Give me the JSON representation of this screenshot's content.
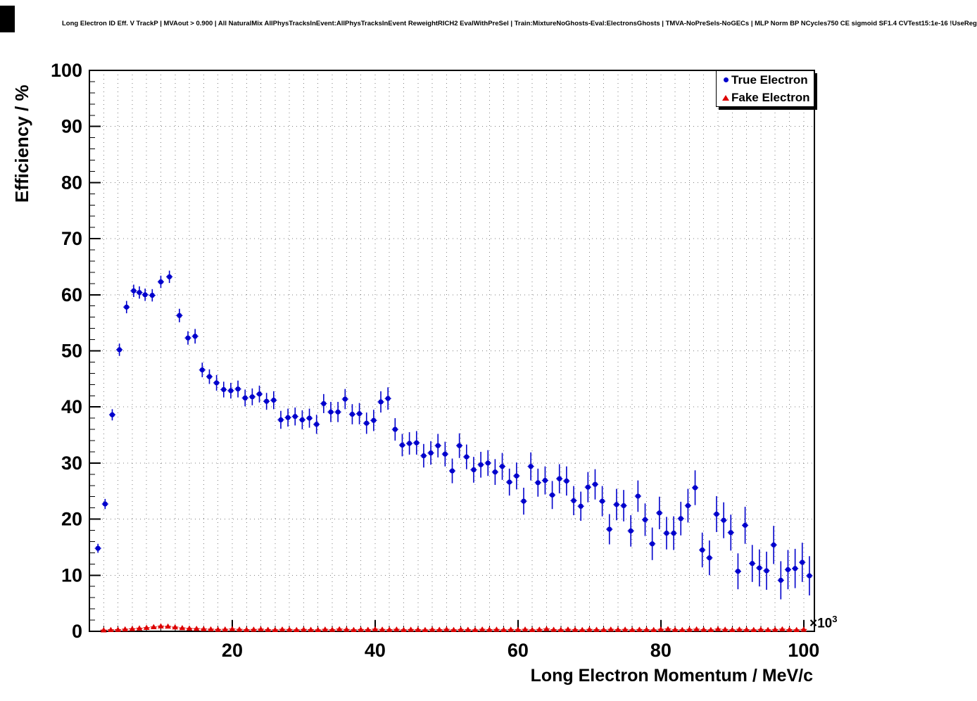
{
  "title": "Long Electron ID Eff. V TrackP | MVAout > 0.900 | All NaturalMix AllPhysTracksInEvent:AllPhysTracksInEvent ReweightRICH2 EvalWithPreSel | Train:MixtureNoGhosts-Eval:ElectronsGhosts | TMVA-NoPreSels-NoGECs | MLP Norm BP NCycles750 CE sigmoid SF1.4 CVTest15:1e-16 !UseReg",
  "axes": {
    "y_label": "Efficiency / %",
    "x_label": "Long Electron Momentum / MeV/c",
    "x_exponent_base": "×10",
    "x_exponent_power": "3"
  },
  "legend": {
    "items": [
      {
        "label": "True Electron",
        "marker": "circle",
        "color": "#0000cc"
      },
      {
        "label": "Fake Electron",
        "marker": "triangle",
        "color": "#dd0000"
      }
    ]
  },
  "chart_data": {
    "type": "scatter",
    "title": "Long Electron ID Eff. V TrackP",
    "xlabel": "Long Electron Momentum / MeV/c",
    "ylabel": "Efficiency / %",
    "x_units_multiplier": "1e3",
    "xlim": [
      0,
      101.5
    ],
    "ylim": [
      0,
      100
    ],
    "xticks": [
      20,
      40,
      60,
      80,
      100
    ],
    "yticks": [
      0,
      10,
      20,
      30,
      40,
      50,
      60,
      70,
      80,
      90,
      100
    ],
    "x_minor_step": 2,
    "y_minor_step": 2,
    "grid": true,
    "legend_position": "top-right",
    "series": [
      {
        "name": "True Electron",
        "marker": "circle",
        "color": "#0000cc",
        "points": [
          [
            1.2,
            14.8,
            0.8
          ],
          [
            2.2,
            22.7,
            0.9
          ],
          [
            3.2,
            38.6,
            1.0
          ],
          [
            4.2,
            50.2,
            1.1
          ],
          [
            5.2,
            57.8,
            1.1
          ],
          [
            6.2,
            60.7,
            1.1
          ],
          [
            7.0,
            60.4,
            1.1
          ],
          [
            7.8,
            60.0,
            1.1
          ],
          [
            8.8,
            59.9,
            1.1
          ],
          [
            10.0,
            62.3,
            1.1
          ],
          [
            11.2,
            63.2,
            1.1
          ],
          [
            12.6,
            56.3,
            1.2
          ],
          [
            13.8,
            52.3,
            1.2
          ],
          [
            14.8,
            52.6,
            1.3
          ],
          [
            15.8,
            46.6,
            1.3
          ],
          [
            16.8,
            45.4,
            1.3
          ],
          [
            17.8,
            44.3,
            1.4
          ],
          [
            18.8,
            43.1,
            1.4
          ],
          [
            19.8,
            42.9,
            1.4
          ],
          [
            20.8,
            43.2,
            1.5
          ],
          [
            21.8,
            41.6,
            1.5
          ],
          [
            22.8,
            41.8,
            1.5
          ],
          [
            23.8,
            42.3,
            1.5
          ],
          [
            24.8,
            41.0,
            1.5
          ],
          [
            25.8,
            41.2,
            1.6
          ],
          [
            26.8,
            37.7,
            1.6
          ],
          [
            27.8,
            38.1,
            1.6
          ],
          [
            28.8,
            38.3,
            1.6
          ],
          [
            29.8,
            37.7,
            1.7
          ],
          [
            30.8,
            38.0,
            1.7
          ],
          [
            31.8,
            36.9,
            1.7
          ],
          [
            32.8,
            40.6,
            1.7
          ],
          [
            33.8,
            39.1,
            1.8
          ],
          [
            34.8,
            39.1,
            1.8
          ],
          [
            35.8,
            41.4,
            1.8
          ],
          [
            36.8,
            38.7,
            1.8
          ],
          [
            37.8,
            38.8,
            1.9
          ],
          [
            38.8,
            37.1,
            1.9
          ],
          [
            39.8,
            37.6,
            1.9
          ],
          [
            40.8,
            40.9,
            1.9
          ],
          [
            41.8,
            41.5,
            2.0
          ],
          [
            42.8,
            36.0,
            2.0
          ],
          [
            43.8,
            33.2,
            2.0
          ],
          [
            44.8,
            33.5,
            2.0
          ],
          [
            45.8,
            33.6,
            2.1
          ],
          [
            46.8,
            31.3,
            2.1
          ],
          [
            47.8,
            31.8,
            2.1
          ],
          [
            48.8,
            33.1,
            2.1
          ],
          [
            49.8,
            31.6,
            2.2
          ],
          [
            50.8,
            28.6,
            2.2
          ],
          [
            51.8,
            33.1,
            2.2
          ],
          [
            52.8,
            31.1,
            2.2
          ],
          [
            53.8,
            28.8,
            2.3
          ],
          [
            54.8,
            29.7,
            2.3
          ],
          [
            55.8,
            30.0,
            2.3
          ],
          [
            56.8,
            28.4,
            2.3
          ],
          [
            57.8,
            29.4,
            2.4
          ],
          [
            58.8,
            26.6,
            2.4
          ],
          [
            59.8,
            27.7,
            2.4
          ],
          [
            60.8,
            23.2,
            2.4
          ],
          [
            61.8,
            29.4,
            2.5
          ],
          [
            62.8,
            26.5,
            2.5
          ],
          [
            63.8,
            26.9,
            2.5
          ],
          [
            64.8,
            24.3,
            2.5
          ],
          [
            65.8,
            27.2,
            2.6
          ],
          [
            66.8,
            26.8,
            2.6
          ],
          [
            67.8,
            23.3,
            2.6
          ],
          [
            68.8,
            22.3,
            2.6
          ],
          [
            69.8,
            25.7,
            2.7
          ],
          [
            70.8,
            26.2,
            2.7
          ],
          [
            71.8,
            23.2,
            2.7
          ],
          [
            72.8,
            18.2,
            2.7
          ],
          [
            73.8,
            22.6,
            2.8
          ],
          [
            74.8,
            22.4,
            2.8
          ],
          [
            75.8,
            17.9,
            2.8
          ],
          [
            76.8,
            24.1,
            2.8
          ],
          [
            77.8,
            19.9,
            2.9
          ],
          [
            78.8,
            15.6,
            2.9
          ],
          [
            79.8,
            21.1,
            2.9
          ],
          [
            80.8,
            17.5,
            2.9
          ],
          [
            81.8,
            17.5,
            3.0
          ],
          [
            82.8,
            20.1,
            3.0
          ],
          [
            83.8,
            22.4,
            3.0
          ],
          [
            84.8,
            25.6,
            3.1
          ],
          [
            85.8,
            14.5,
            3.1
          ],
          [
            86.8,
            13.1,
            3.1
          ],
          [
            87.8,
            20.9,
            3.2
          ],
          [
            88.8,
            19.8,
            3.2
          ],
          [
            89.8,
            17.6,
            3.2
          ],
          [
            90.8,
            10.7,
            3.2
          ],
          [
            91.8,
            18.9,
            3.3
          ],
          [
            92.8,
            12.1,
            3.3
          ],
          [
            93.8,
            11.3,
            3.3
          ],
          [
            94.8,
            10.8,
            3.4
          ],
          [
            95.8,
            15.4,
            3.4
          ],
          [
            96.8,
            9.1,
            3.4
          ],
          [
            97.8,
            11.0,
            3.5
          ],
          [
            98.8,
            11.2,
            3.5
          ],
          [
            99.8,
            12.3,
            3.5
          ],
          [
            100.8,
            9.9,
            3.5
          ]
        ]
      },
      {
        "name": "Fake Electron",
        "marker": "triangle",
        "color": "#dd0000",
        "default_err": 0.12,
        "points": [
          [
            2,
            0.22
          ],
          [
            3,
            0.28
          ],
          [
            4,
            0.3
          ],
          [
            5,
            0.38
          ],
          [
            6,
            0.45
          ],
          [
            7,
            0.55
          ],
          [
            8,
            0.65
          ],
          [
            9,
            0.78
          ],
          [
            10,
            0.92
          ],
          [
            11,
            0.88
          ],
          [
            12,
            0.75
          ],
          [
            13,
            0.6
          ],
          [
            14,
            0.52
          ],
          [
            15,
            0.48
          ],
          [
            16,
            0.42
          ],
          [
            17,
            0.38
          ],
          [
            18,
            0.33
          ],
          [
            19,
            0.36
          ],
          [
            20,
            0.42
          ],
          [
            21,
            0.35
          ],
          [
            22,
            0.3
          ],
          [
            23,
            0.33
          ],
          [
            24,
            0.38
          ],
          [
            25,
            0.3
          ],
          [
            26,
            0.28
          ],
          [
            27,
            0.35
          ],
          [
            28,
            0.32
          ],
          [
            29,
            0.28
          ],
          [
            30,
            0.33
          ],
          [
            31,
            0.3
          ],
          [
            32,
            0.27
          ],
          [
            33,
            0.35
          ],
          [
            34,
            0.3
          ],
          [
            35,
            0.4
          ],
          [
            36,
            0.33
          ],
          [
            37,
            0.28
          ],
          [
            38,
            0.32
          ],
          [
            39,
            0.3
          ],
          [
            40,
            0.38
          ],
          [
            41,
            0.33
          ],
          [
            42,
            0.3
          ],
          [
            43,
            0.35
          ],
          [
            44,
            0.28
          ],
          [
            45,
            0.32
          ],
          [
            46,
            0.3
          ],
          [
            47,
            0.27
          ],
          [
            48,
            0.33
          ],
          [
            49,
            0.3
          ],
          [
            50,
            0.35
          ],
          [
            51,
            0.28
          ],
          [
            52,
            0.32
          ],
          [
            53,
            0.3
          ],
          [
            54,
            0.27
          ],
          [
            55,
            0.35
          ],
          [
            56,
            0.3
          ],
          [
            57,
            0.33
          ],
          [
            58,
            0.28
          ],
          [
            59,
            0.32
          ],
          [
            60,
            0.3
          ],
          [
            61,
            0.35
          ],
          [
            62,
            0.28
          ],
          [
            63,
            0.33
          ],
          [
            64,
            0.42
          ],
          [
            65,
            0.3
          ],
          [
            66,
            0.28
          ],
          [
            67,
            0.35
          ],
          [
            68,
            0.3
          ],
          [
            69,
            0.27
          ],
          [
            70,
            0.33
          ],
          [
            71,
            0.3
          ],
          [
            72,
            0.28
          ],
          [
            73,
            0.35
          ],
          [
            74,
            0.3
          ],
          [
            75,
            0.33
          ],
          [
            76,
            0.28
          ],
          [
            77,
            0.32
          ],
          [
            78,
            0.3
          ],
          [
            79,
            0.27
          ],
          [
            80,
            0.35
          ],
          [
            81,
            0.42
          ],
          [
            82,
            0.3
          ],
          [
            83,
            0.28
          ],
          [
            84,
            0.33
          ],
          [
            85,
            0.38
          ],
          [
            86,
            0.3
          ],
          [
            87,
            0.27
          ],
          [
            88,
            0.4
          ],
          [
            89,
            0.33
          ],
          [
            90,
            0.28
          ],
          [
            91,
            0.35
          ],
          [
            92,
            0.3
          ],
          [
            93,
            0.27
          ],
          [
            94,
            0.33
          ],
          [
            95,
            0.28
          ],
          [
            96,
            0.32
          ],
          [
            97,
            0.38
          ],
          [
            98,
            0.3
          ],
          [
            99,
            0.28
          ],
          [
            100,
            0.33
          ]
        ]
      }
    ]
  }
}
